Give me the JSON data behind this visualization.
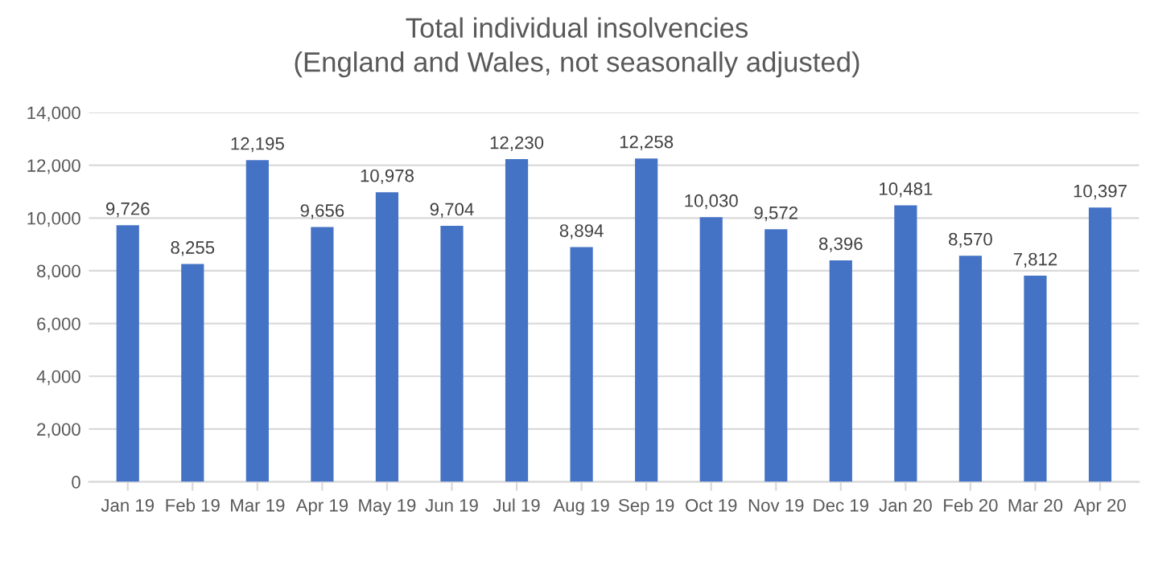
{
  "chart_data": {
    "type": "bar",
    "title": "Total individual insolvencies\n(England and Wales, not seasonally adjusted)",
    "categories": [
      "Jan 19",
      "Feb 19",
      "Mar 19",
      "Apr 19",
      "May 19",
      "Jun 19",
      "Jul 19",
      "Aug 19",
      "Sep 19",
      "Oct 19",
      "Nov 19",
      "Dec 19",
      "Jan 20",
      "Feb 20",
      "Mar 20",
      "Apr 20"
    ],
    "values": [
      9726,
      8255,
      12195,
      9656,
      10978,
      9704,
      12230,
      8894,
      12258,
      10030,
      9572,
      8396,
      10481,
      8570,
      7812,
      10397
    ],
    "value_labels": [
      "9,726",
      "8,255",
      "12,195",
      "9,656",
      "10,978",
      "9,704",
      "12,230",
      "8,894",
      "12,258",
      "10,030",
      "9,572",
      "8,396",
      "10,481",
      "8,570",
      "7,812",
      "10,397"
    ],
    "color": "#4472c4",
    "ylim": [
      0,
      14000
    ],
    "yticks": [
      0,
      {
        "value": 2000,
        "label": "2,000"
      },
      {
        "value": 4000,
        "label": "4,000"
      },
      {
        "value": 6000,
        "label": "6,000"
      },
      {
        "value": 8000,
        "label": "8,000"
      },
      {
        "value": 10000,
        "label": "10,000"
      },
      {
        "value": 12000,
        "label": "12,000"
      },
      {
        "value": 14000,
        "label": "14,000"
      }
    ],
    "grid": "y",
    "legend": false
  }
}
